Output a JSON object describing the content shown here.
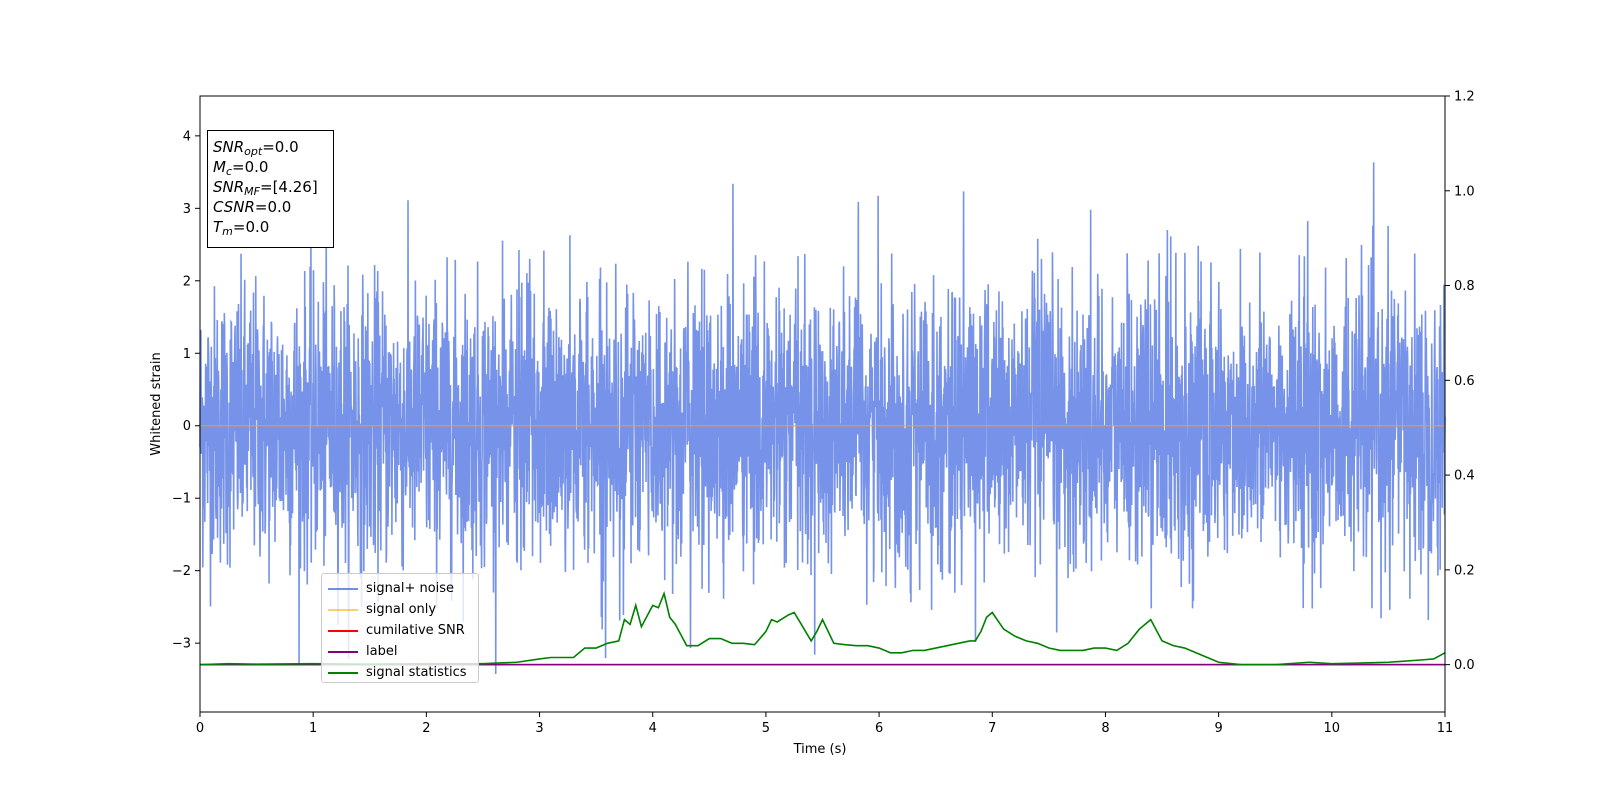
{
  "chart_data": {
    "type": "line",
    "xlabel": "Time (s)",
    "ylabel": "Whitened strain",
    "xlim": [
      0,
      11
    ],
    "ylim": [
      -3.95,
      4.55
    ],
    "y2lim": [
      -0.1,
      1.2
    ],
    "xticks": [
      0,
      1,
      2,
      3,
      4,
      5,
      6,
      7,
      8,
      9,
      10,
      11
    ],
    "yticks": [
      -3,
      -2,
      -1,
      0,
      1,
      2,
      3,
      4
    ],
    "yticks_labels": [
      "−3",
      "−2",
      "−1",
      "0",
      "1",
      "2",
      "3",
      "4"
    ],
    "y2ticks": [
      0.0,
      0.2,
      0.4,
      0.6,
      0.8,
      1.0,
      1.2
    ],
    "y2ticks_labels": [
      "0.0",
      "0.2",
      "0.4",
      "0.6",
      "0.8",
      "1.0",
      "1.2"
    ],
    "grid": false,
    "legend_position": "bottom-left",
    "series": [
      {
        "name": "signal+ noise",
        "color": "#4169e1",
        "axis": "left",
        "description_values": "whitened noise, approx. within [-2.5, 2.5] with peaks to about 4.2 and dips to about -3.5",
        "y_range": [
          -3.55,
          4.18
        ]
      },
      {
        "name": "signal only",
        "color": "#ffa500",
        "axis": "left",
        "x": [
          0,
          11
        ],
        "y": [
          0,
          0
        ]
      },
      {
        "name": "cumilative SNR",
        "color": "#ff0000",
        "axis": "right",
        "x": [
          0,
          11
        ],
        "y": [
          0,
          0
        ]
      },
      {
        "name": "label",
        "color": "#800080",
        "axis": "right",
        "x": [
          0,
          11
        ],
        "y": [
          0,
          0
        ]
      },
      {
        "name": "signal statistics",
        "color": "#008000",
        "axis": "right",
        "x": [
          0,
          0.25,
          0.5,
          1.0,
          1.5,
          2.0,
          2.5,
          2.8,
          3.0,
          3.1,
          3.3,
          3.4,
          3.5,
          3.6,
          3.7,
          3.75,
          3.8,
          3.85,
          3.9,
          4.0,
          4.05,
          4.1,
          4.15,
          4.2,
          4.3,
          4.4,
          4.5,
          4.6,
          4.7,
          4.8,
          4.9,
          5.0,
          5.05,
          5.1,
          5.2,
          5.25,
          5.3,
          5.4,
          5.45,
          5.5,
          5.6,
          5.7,
          5.8,
          5.9,
          6.0,
          6.1,
          6.2,
          6.3,
          6.4,
          6.5,
          6.6,
          6.7,
          6.8,
          6.85,
          6.9,
          6.95,
          7.0,
          7.1,
          7.2,
          7.3,
          7.4,
          7.5,
          7.6,
          7.7,
          7.8,
          7.9,
          8.0,
          8.1,
          8.2,
          8.25,
          8.3,
          8.4,
          8.5,
          8.6,
          8.7,
          8.8,
          8.9,
          9.0,
          9.2,
          9.5,
          9.8,
          10.0,
          10.2,
          10.5,
          10.8,
          10.9,
          11.0
        ],
        "y": [
          0.0,
          0.002,
          0.001,
          0.002,
          0.001,
          0.002,
          0.002,
          0.005,
          0.012,
          0.015,
          0.015,
          0.035,
          0.035,
          0.045,
          0.05,
          0.095,
          0.085,
          0.125,
          0.08,
          0.125,
          0.12,
          0.15,
          0.1,
          0.085,
          0.04,
          0.04,
          0.055,
          0.055,
          0.045,
          0.045,
          0.042,
          0.07,
          0.095,
          0.09,
          0.105,
          0.11,
          0.09,
          0.05,
          0.07,
          0.095,
          0.045,
          0.042,
          0.04,
          0.04,
          0.035,
          0.025,
          0.025,
          0.03,
          0.03,
          0.035,
          0.04,
          0.045,
          0.05,
          0.05,
          0.07,
          0.1,
          0.11,
          0.075,
          0.06,
          0.05,
          0.045,
          0.035,
          0.03,
          0.03,
          0.03,
          0.035,
          0.035,
          0.03,
          0.045,
          0.06,
          0.075,
          0.095,
          0.05,
          0.04,
          0.035,
          0.025,
          0.015,
          0.005,
          0.0,
          0.0,
          0.005,
          0.002,
          0.003,
          0.005,
          0.01,
          0.012,
          0.025
        ]
      }
    ],
    "annotation_box": {
      "position": "top-left",
      "lines": [
        {
          "name": "SNR",
          "sub": "opt",
          "value": "=0.0"
        },
        {
          "name": "M",
          "sub": "c",
          "value": "=0.0"
        },
        {
          "name": "SNR",
          "sub": "MF",
          "value": "=[4.26]"
        },
        {
          "name": "CSNR",
          "sub": "",
          "value": "=0.0"
        },
        {
          "name": "T",
          "sub": "m",
          "value": "=0.0"
        }
      ]
    }
  },
  "colors": {
    "noise": "#4169e1",
    "signal": "#ffa500",
    "cumsnr": "#ff0000",
    "label": "#800080",
    "statistics": "#008000"
  }
}
